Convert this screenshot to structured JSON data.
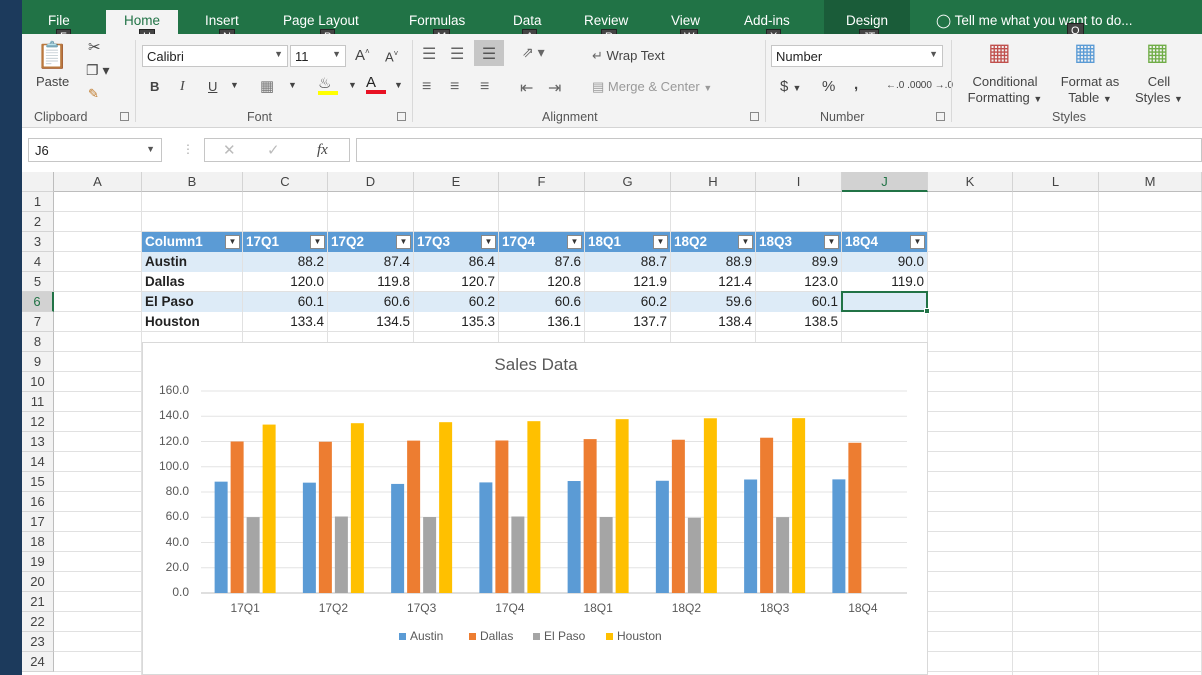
{
  "tabs": [
    {
      "label": "File",
      "key": "F"
    },
    {
      "label": "Home",
      "key": "H"
    },
    {
      "label": "Insert",
      "key": "N"
    },
    {
      "label": "Page Layout",
      "key": "P"
    },
    {
      "label": "Formulas",
      "key": "M"
    },
    {
      "label": "Data",
      "key": "A"
    },
    {
      "label": "Review",
      "key": "R"
    },
    {
      "label": "View",
      "key": "W"
    },
    {
      "label": "Add-ins",
      "key": "X"
    },
    {
      "label": "Design",
      "key": "JT"
    }
  ],
  "tell_me": {
    "label": "Tell me what you want to do...",
    "key": "Q"
  },
  "ribbon": {
    "clipboard": {
      "paste": "Paste",
      "label": "Clipboard"
    },
    "font": {
      "name": "Calibri",
      "size": "11",
      "bold": "B",
      "italic": "I",
      "underline": "U",
      "grow": "A",
      "shrink": "A",
      "label": "Font",
      "fill_color": "#ffff00",
      "font_color": "#e81123"
    },
    "alignment": {
      "wrap": "Wrap Text",
      "merge": "Merge & Center",
      "label": "Alignment"
    },
    "number": {
      "format": "Number",
      "currency": "$",
      "percent": "%",
      "comma": ",",
      "inc": "←.0 .00",
      "dec": ".00 →.0",
      "label": "Number"
    },
    "styles": {
      "conditional": [
        "Conditional",
        "Formatting"
      ],
      "format_as": [
        "Format as",
        "Table"
      ],
      "cell_styles": [
        "Cell",
        "Styles"
      ],
      "label": "Styles"
    }
  },
  "formula_bar": {
    "name_box": "J6",
    "fx": "fx",
    "value": ""
  },
  "columns": [
    "A",
    "B",
    "C",
    "D",
    "E",
    "F",
    "G",
    "H",
    "I",
    "J",
    "K",
    "L",
    "M"
  ],
  "rows": [
    "1",
    "2",
    "3",
    "4",
    "5",
    "6",
    "7",
    "8",
    "9",
    "10",
    "11",
    "12",
    "13",
    "14",
    "15",
    "16",
    "17",
    "18",
    "19",
    "20",
    "21",
    "22",
    "23",
    "24"
  ],
  "table": {
    "headers": [
      "Column1",
      "17Q1",
      "17Q2",
      "17Q3",
      "17Q4",
      "18Q1",
      "18Q2",
      "18Q3",
      "18Q4"
    ],
    "rows": [
      {
        "name": "Austin",
        "values": [
          "88.2",
          "87.4",
          "86.4",
          "87.6",
          "88.7",
          "88.9",
          "89.9",
          "90.0"
        ]
      },
      {
        "name": "Dallas",
        "values": [
          "120.0",
          "119.8",
          "120.7",
          "120.8",
          "121.9",
          "121.4",
          "123.0",
          "119.0"
        ]
      },
      {
        "name": "El Paso",
        "values": [
          "60.1",
          "60.6",
          "60.2",
          "60.6",
          "60.2",
          "59.6",
          "60.1",
          ""
        ]
      },
      {
        "name": "Houston",
        "values": [
          "133.4",
          "134.5",
          "135.3",
          "136.1",
          "137.7",
          "138.4",
          "138.5",
          ""
        ]
      }
    ]
  },
  "chart_data": {
    "type": "bar",
    "title": "Sales Data",
    "categories": [
      "17Q1",
      "17Q2",
      "17Q3",
      "17Q4",
      "18Q1",
      "18Q2",
      "18Q3",
      "18Q4"
    ],
    "series": [
      {
        "name": "Austin",
        "color": "#5b9bd5",
        "values": [
          88.2,
          87.4,
          86.4,
          87.6,
          88.7,
          88.9,
          89.9,
          90.0
        ]
      },
      {
        "name": "Dallas",
        "color": "#ed7d31",
        "values": [
          120.0,
          119.8,
          120.7,
          120.8,
          121.9,
          121.4,
          123.0,
          119.0
        ]
      },
      {
        "name": "El Paso",
        "color": "#a5a5a5",
        "values": [
          60.1,
          60.6,
          60.2,
          60.6,
          60.2,
          59.6,
          60.1,
          null
        ]
      },
      {
        "name": "Houston",
        "color": "#ffc000",
        "values": [
          133.4,
          134.5,
          135.3,
          136.1,
          137.7,
          138.4,
          138.5,
          null
        ]
      }
    ],
    "yticks": [
      "0.0",
      "20.0",
      "40.0",
      "60.0",
      "80.0",
      "100.0",
      "120.0",
      "140.0",
      "160.0"
    ],
    "ylim": [
      0,
      160
    ],
    "grid": true,
    "legend": "bottom"
  }
}
